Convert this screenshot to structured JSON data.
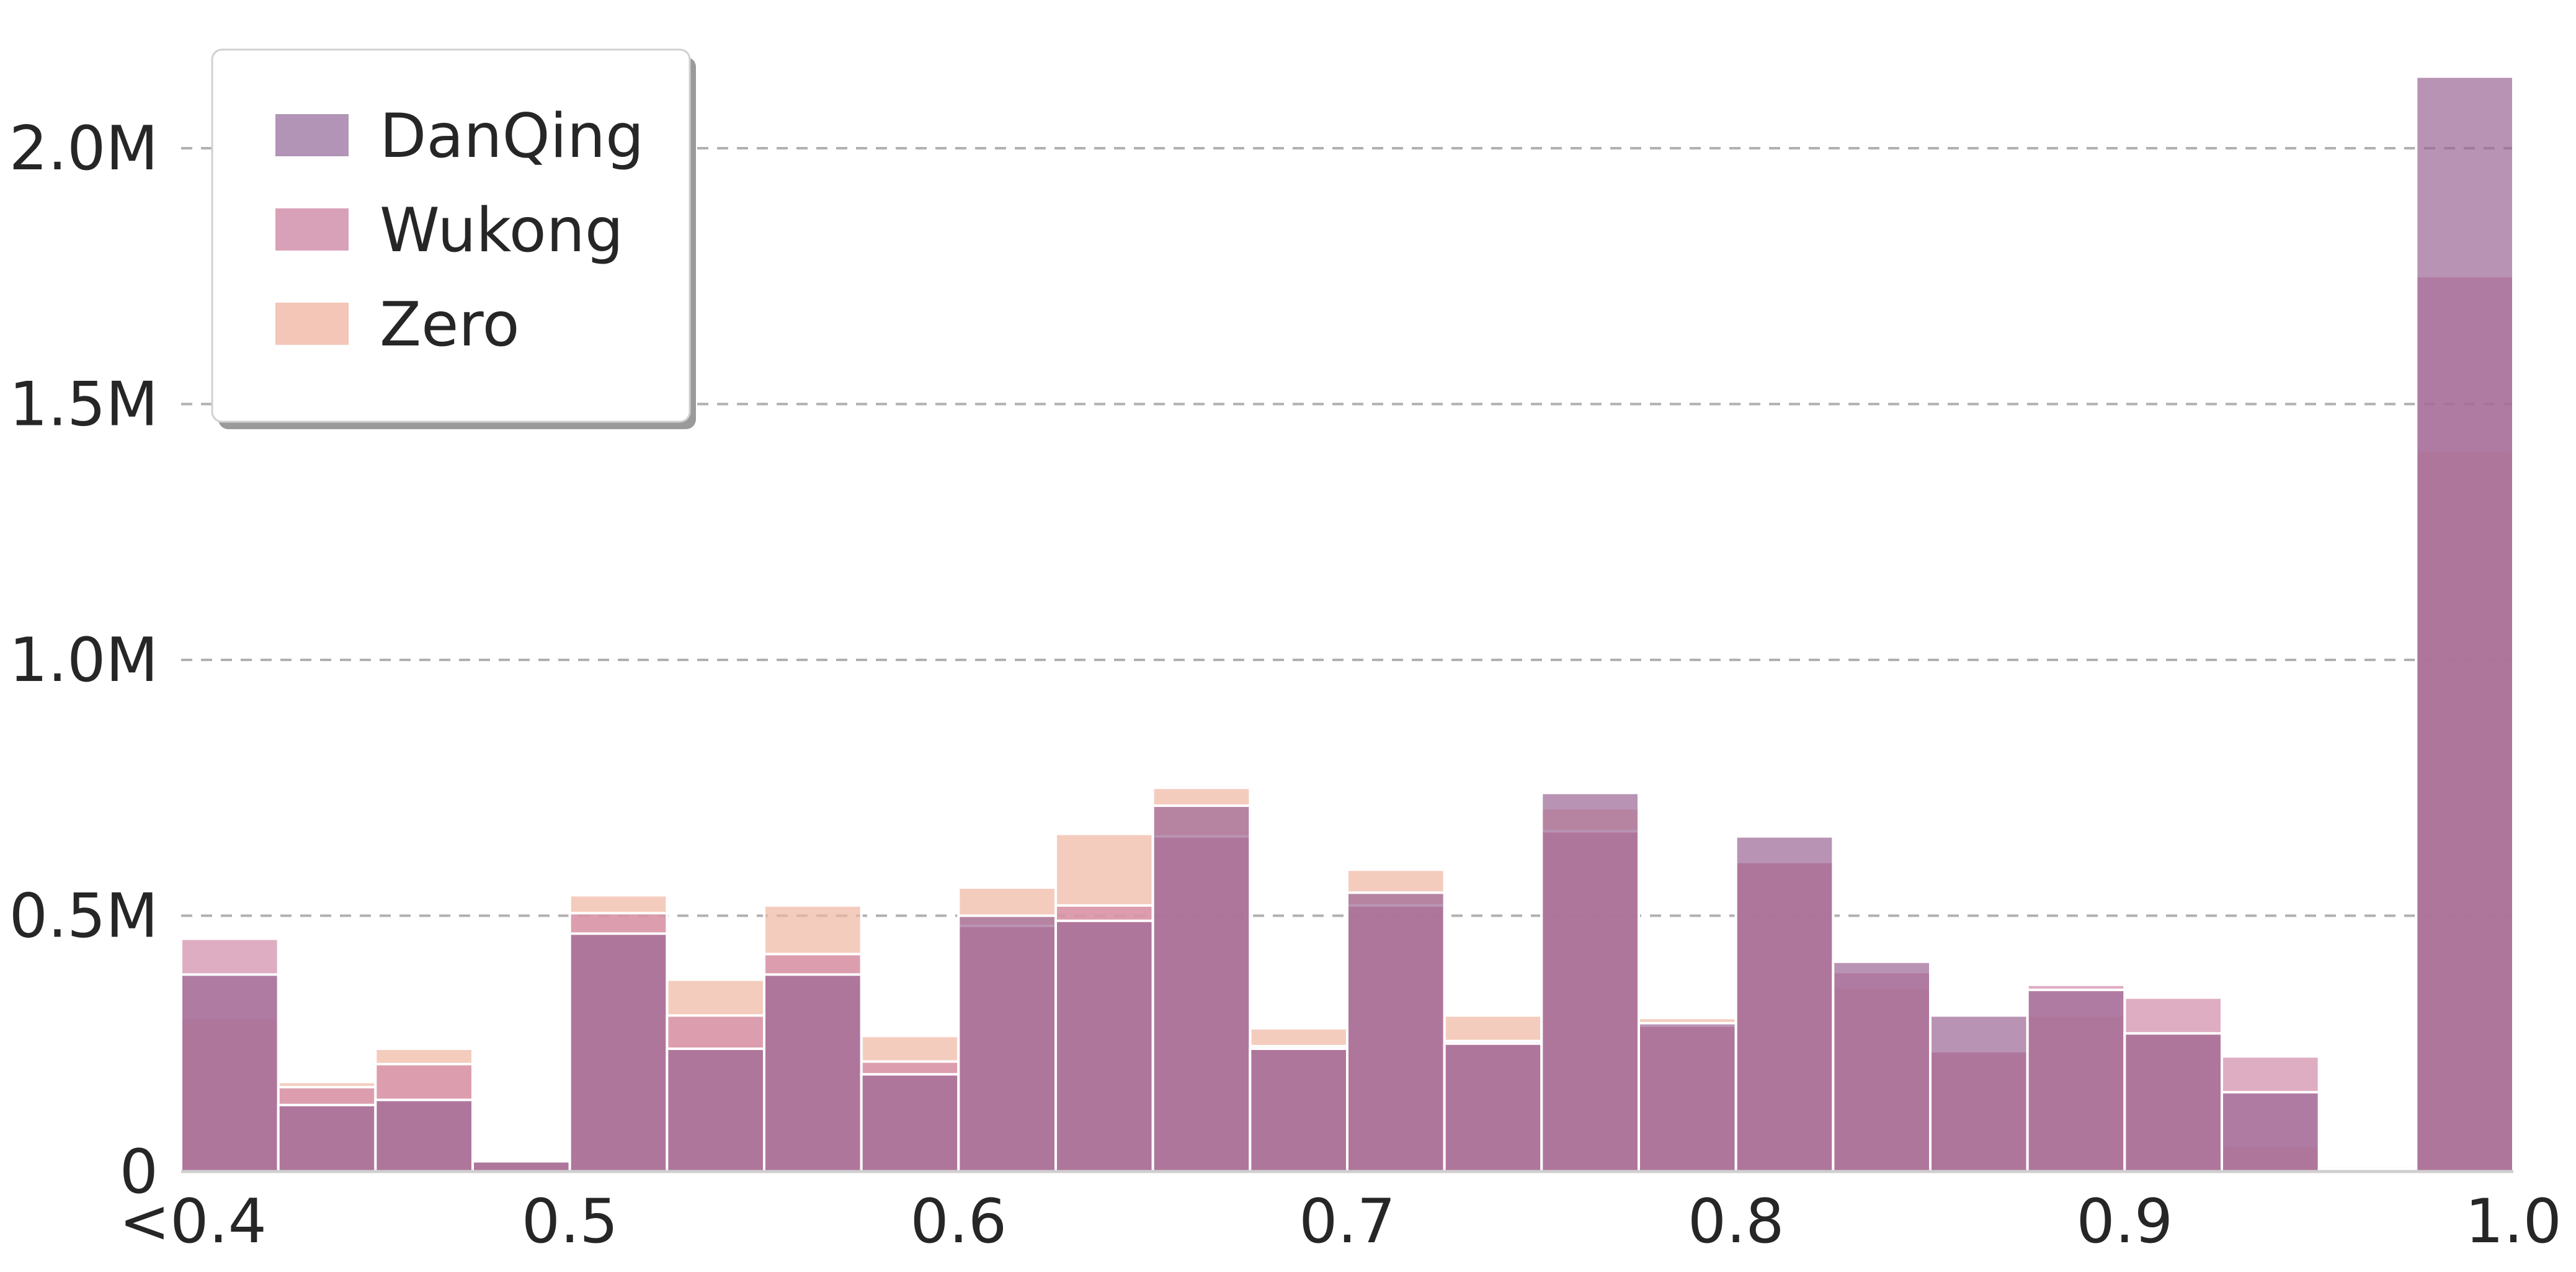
{
  "chart_data": {
    "type": "bar",
    "chart_style": "overlapping histogram (translucent bars)",
    "bin_edges": [
      0.4,
      0.425,
      0.45,
      0.475,
      0.5,
      0.525,
      0.55,
      0.575,
      0.6,
      0.625,
      0.65,
      0.675,
      0.7,
      0.725,
      0.75,
      0.775,
      0.8,
      0.825,
      0.85,
      0.875,
      0.9,
      0.925,
      0.95,
      0.975,
      1.0
    ],
    "series": [
      {
        "name": "Zero",
        "color": "#f0b6a2",
        "values": [
          300000,
          175000,
          240000,
          25000,
          540000,
          375000,
          520000,
          265000,
          555000,
          660000,
          750000,
          280000,
          590000,
          305000,
          710000,
          300000,
          605000,
          360000,
          235000,
          305000,
          275000,
          50000,
          10000,
          1410000
        ]
      },
      {
        "name": "Wukong",
        "color": "#d28aa8",
        "values": [
          455000,
          165000,
          210000,
          25000,
          505000,
          305000,
          425000,
          215000,
          480000,
          520000,
          655000,
          245000,
          520000,
          255000,
          665000,
          285000,
          605000,
          390000,
          235000,
          365000,
          340000,
          225000,
          5000,
          1750000
        ]
      },
      {
        "name": "DanQing",
        "color": "#9b6594",
        "values": [
          385000,
          130000,
          140000,
          20000,
          465000,
          240000,
          385000,
          190000,
          500000,
          490000,
          715000,
          240000,
          545000,
          250000,
          740000,
          290000,
          655000,
          410000,
          305000,
          355000,
          270000,
          155000,
          5000,
          2140000
        ]
      }
    ],
    "legend": {
      "position": "top-left",
      "entries": [
        "DanQing",
        "Wukong",
        "Zero"
      ],
      "colors": [
        "#b294b6",
        "#d9a1b7",
        "#f3c6b7"
      ]
    },
    "x_ticks": [
      "<0.4",
      "0.5",
      "0.6",
      "0.7",
      "0.8",
      "0.9",
      "1.0"
    ],
    "x_tick_values": [
      0.4,
      0.5,
      0.6,
      0.7,
      0.8,
      0.9,
      1.0
    ],
    "y_ticks": [
      "0",
      "0.5M",
      "1.0M",
      "1.5M",
      "2.0M"
    ],
    "y_tick_values": [
      0,
      500000,
      1000000,
      1500000,
      2000000
    ],
    "xlim": [
      0.4,
      1.0
    ],
    "ylim": [
      0,
      2200000
    ],
    "grid": "horizontal dashed",
    "title": "",
    "xlabel": "",
    "ylabel": ""
  }
}
